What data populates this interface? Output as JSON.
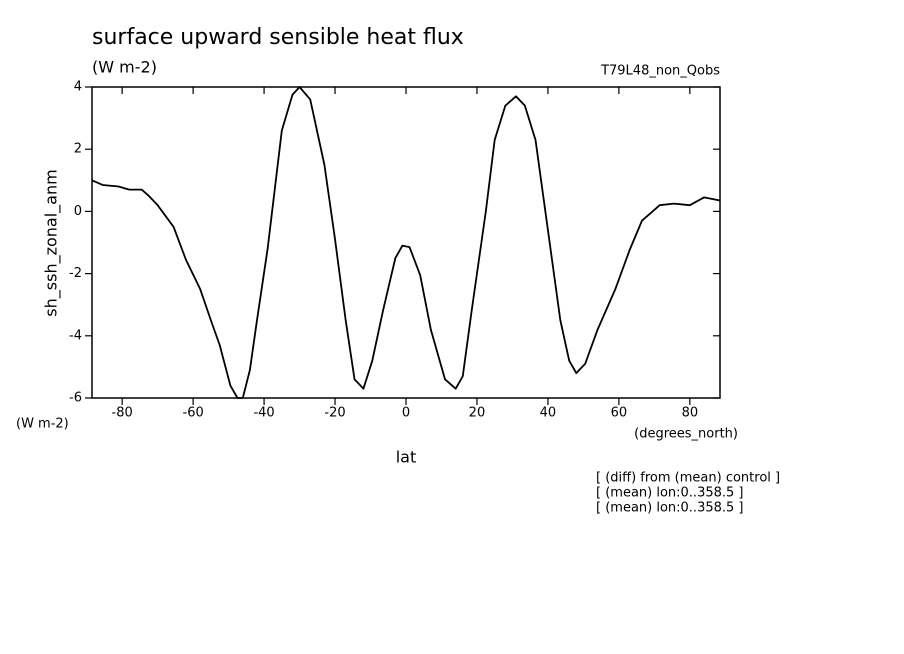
{
  "chart_data": {
    "type": "line",
    "title": "surface upward sensible heat flux",
    "subtitle": "(W m-2)",
    "run_label": "T79L48_non_Qobs",
    "y_label": "sh_ssh_zonal_anm",
    "y_units": "(W m-2)",
    "x_label": "lat",
    "x_units": "(degrees_north)",
    "annotations": [
      "[ (diff) from (mean) control ]",
      "[ (mean) lon:0..358.5 ]",
      "[ (mean) lon:0..358.5 ]"
    ],
    "color": "#000000",
    "x": [
      -88.5,
      -85.5,
      -81,
      -78,
      -74.5,
      -72.5,
      -70,
      -65.5,
      -62,
      -58,
      -55,
      -52.5,
      -49.5,
      -47.5,
      -46,
      -44,
      -42,
      -39,
      -35,
      -32,
      -30,
      -27,
      -23,
      -20,
      -17,
      -14.5,
      -12,
      -9.5,
      -6.5,
      -3,
      -1,
      1,
      4,
      7,
      11,
      14,
      16,
      18.5,
      22.5,
      25,
      28,
      31,
      33.5,
      36.5,
      40,
      43.5,
      46,
      48,
      50.5,
      54,
      59,
      63,
      66.5,
      71.5,
      75.5,
      80,
      84,
      88.5
    ],
    "values": [
      1.0,
      0.85,
      0.8,
      0.7,
      0.7,
      0.5,
      0.2,
      -0.5,
      -1.56,
      -2.5,
      -3.5,
      -4.3,
      -5.6,
      -6.0,
      -6.0,
      -5.1,
      -3.5,
      -1.2,
      2.6,
      3.75,
      4.0,
      3.6,
      1.5,
      -0.9,
      -3.5,
      -5.4,
      -5.7,
      -4.8,
      -3.2,
      -1.5,
      -1.1,
      -1.15,
      -2.05,
      -3.8,
      -5.4,
      -5.7,
      -5.3,
      -3.2,
      0.0,
      2.3,
      3.4,
      3.7,
      3.4,
      2.3,
      -0.6,
      -3.5,
      -4.8,
      -5.2,
      -4.9,
      -3.8,
      -2.5,
      -1.25,
      -0.3,
      0.2,
      0.25,
      0.2,
      0.45,
      0.35
    ],
    "xlim": [
      -88.5,
      88.5
    ],
    "xticks": [
      -80,
      -60,
      -40,
      -20,
      0,
      20,
      40,
      60,
      80
    ],
    "ylim": [
      -6,
      4
    ],
    "yticks": [
      -6,
      -4,
      -2,
      0,
      2,
      4
    ]
  }
}
